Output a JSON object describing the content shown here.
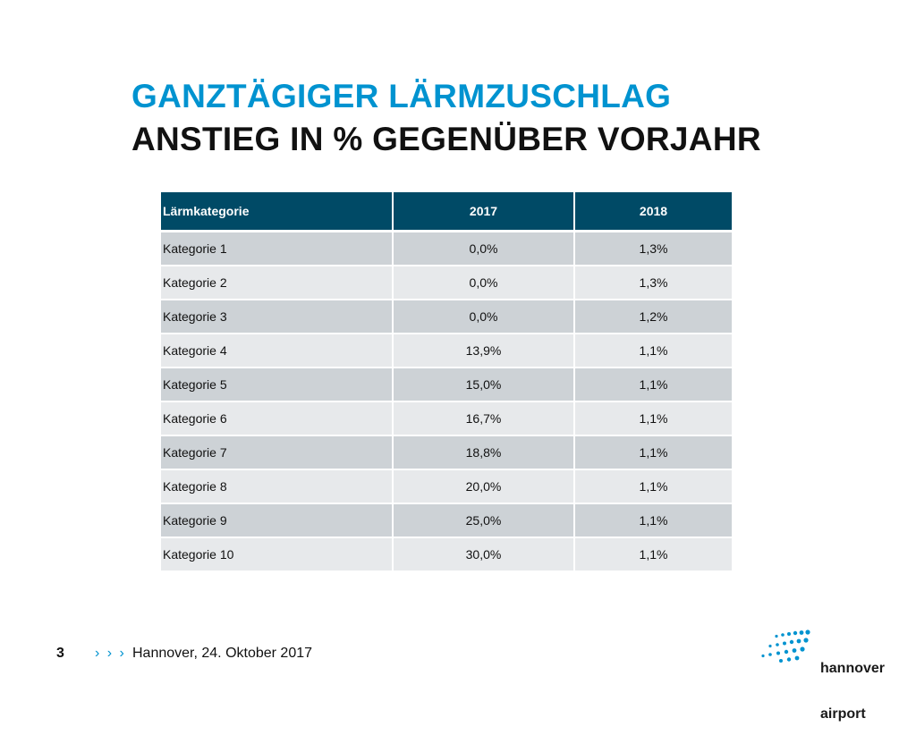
{
  "title": {
    "line1": "GANZTÄGIGER LÄRMZUSCHLAG",
    "line2": "ANSTIEG IN % GEGENÜBER VORJAHR"
  },
  "table": {
    "headers": [
      "Lärmkategorie",
      "2017",
      "2018"
    ],
    "rows": [
      [
        "Kategorie 1",
        "0,0%",
        "1,3%"
      ],
      [
        "Kategorie 2",
        "0,0%",
        "1,3%"
      ],
      [
        "Kategorie 3",
        "0,0%",
        "1,2%"
      ],
      [
        "Kategorie 4",
        "13,9%",
        "1,1%"
      ],
      [
        "Kategorie 5",
        "15,0%",
        "1,1%"
      ],
      [
        "Kategorie 6",
        "16,7%",
        "1,1%"
      ],
      [
        "Kategorie 7",
        "18,8%",
        "1,1%"
      ],
      [
        "Kategorie 8",
        "20,0%",
        "1,1%"
      ],
      [
        "Kategorie 9",
        "25,0%",
        "1,1%"
      ],
      [
        "Kategorie 10",
        "30,0%",
        "1,1%"
      ]
    ]
  },
  "footer": {
    "page_number": "3",
    "chevrons": "› › ›",
    "text": "Hannover, 24. Oktober 2017"
  },
  "logo": {
    "line1": "hannover",
    "line2": "airport",
    "icon": "airport-runway-dots-icon"
  },
  "colors": {
    "accent": "#0093d0",
    "header_bg": "#004a66",
    "row_dark": "#cdd2d6",
    "row_light": "#e7e9eb"
  }
}
